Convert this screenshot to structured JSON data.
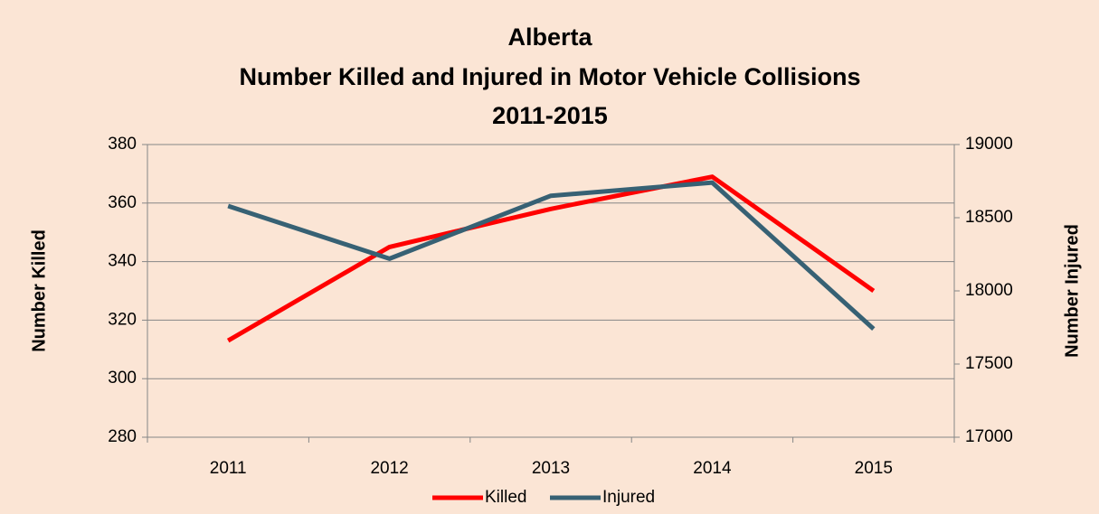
{
  "chart_data": {
    "type": "line",
    "title": [
      "Alberta",
      "Number Killed and Injured in Motor Vehicle Collisions",
      "2011-2015"
    ],
    "y_label": "Number Killed",
    "y2_label": "Number Injured",
    "categories": [
      "2011",
      "2012",
      "2013",
      "2014",
      "2015"
    ],
    "series": [
      {
        "name": "Killed",
        "color": "#ff0000",
        "values": [
          313,
          345,
          358,
          369,
          330
        ]
      },
      {
        "name": "Injured",
        "color": "#376174",
        "axis": "y2",
        "values": [
          18580,
          18220,
          18650,
          18740,
          17740
        ]
      }
    ],
    "ylim": [
      280,
      380
    ],
    "yticks": [
      280,
      300,
      320,
      340,
      360,
      380
    ],
    "y2lim": [
      17000,
      19000
    ],
    "y2ticks": [
      17000,
      17500,
      18000,
      18500,
      19000
    ],
    "grid": true,
    "legend": "bottom",
    "background": "#fbe5d5"
  }
}
